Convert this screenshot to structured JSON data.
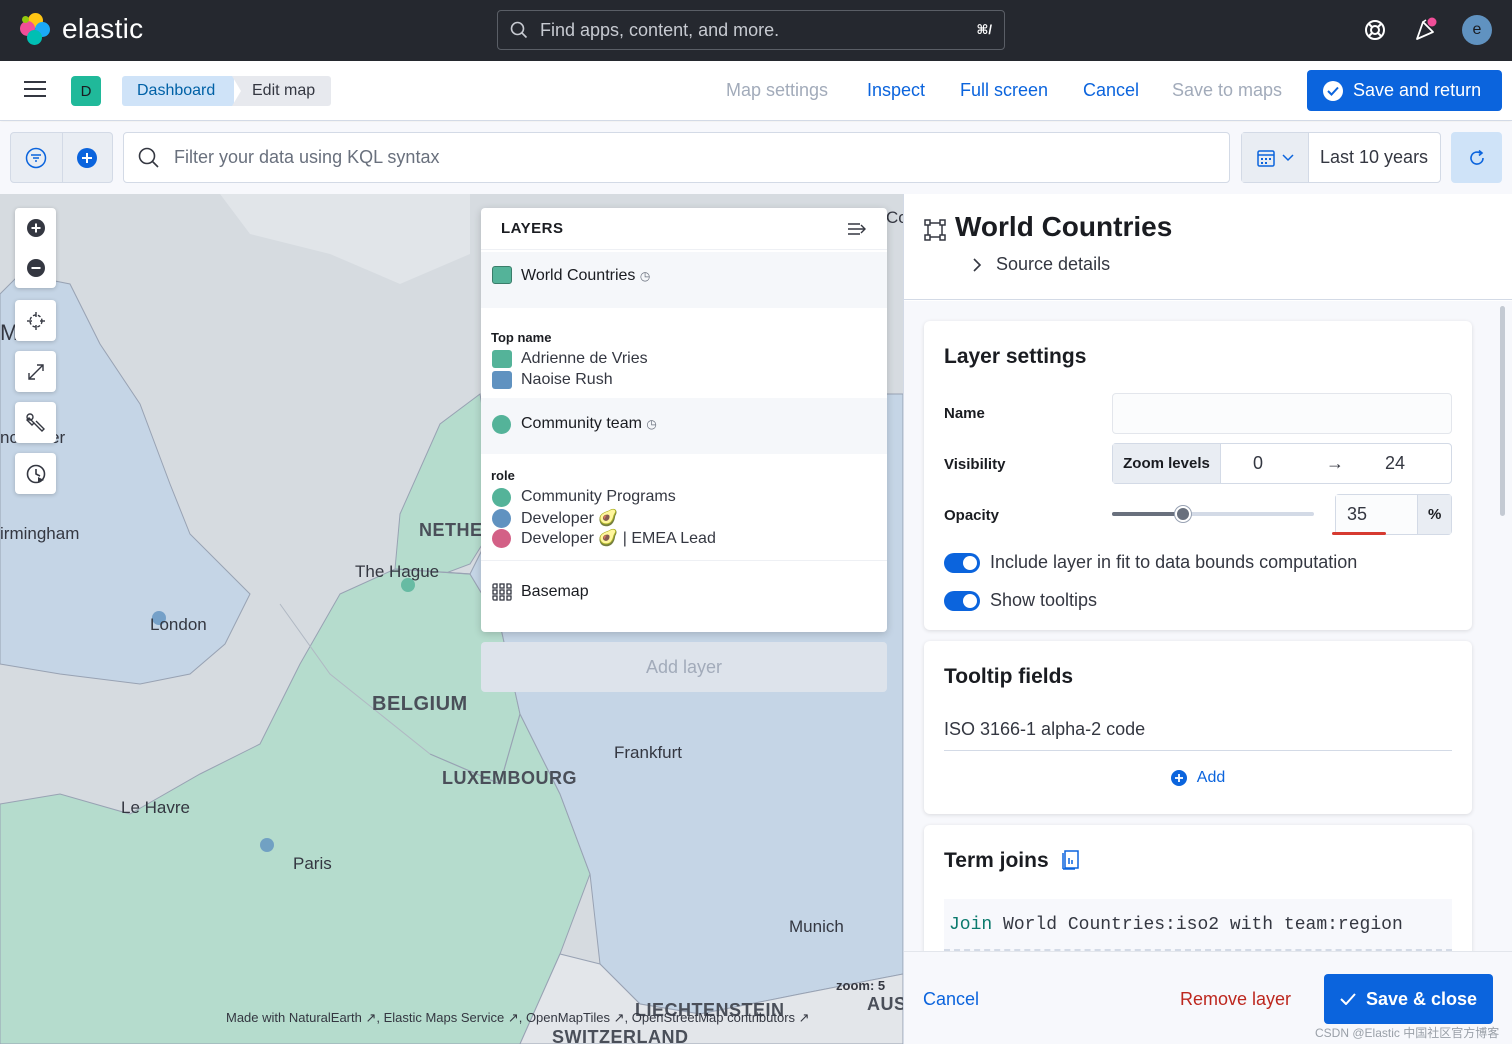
{
  "header": {
    "logo_text": "elastic",
    "search_placeholder": "Find apps, content, and more.",
    "search_shortcut": "⌘/",
    "avatar_initial": "e"
  },
  "actionbar": {
    "space_initial": "D",
    "breadcrumbs": [
      "Dashboard",
      "Edit map"
    ],
    "links": {
      "map_settings": "Map settings",
      "inspect": "Inspect",
      "full_screen": "Full screen",
      "cancel": "Cancel",
      "save_to_maps": "Save to maps"
    },
    "save_return": "Save and return"
  },
  "querybar": {
    "kql_placeholder": "Filter your data using KQL syntax",
    "date_range": "Last 10 years"
  },
  "map": {
    "labels": {
      "manchester": "nchester",
      "birmingham": "irmingham",
      "london": "London",
      "the_hague": "The Hague",
      "netherlands": "NETHER",
      "belgium": "BELGIUM",
      "luxembourg": "LUXEMBOURG",
      "frankfurt": "Frankfurt",
      "le_havre": "Le Havre",
      "paris": "Paris",
      "munich": "Munich",
      "liechtenstein": "LIECHTENSTEIN",
      "switzerland": "SWITZERLAND",
      "austria": "AUS",
      "edge_m": "M",
      "edge_co": "Co"
    },
    "zoom_text": "zoom: 5",
    "attribution": "Made with NaturalEarth ↗, Elastic Maps Service ↗, OpenMapTiles ↗, OpenStreetMap contributors ↗",
    "colors": {
      "water": "#d6dbe0",
      "land_blue": "#c5d5e6",
      "land_green": "#b5dccd",
      "land_grey": "#e3e6ea"
    }
  },
  "layers": {
    "title": "LAYERS",
    "world_countries": "World Countries",
    "top_name_header": "Top name",
    "top_names": [
      "Adrienne de Vries",
      "Naoise Rush"
    ],
    "community_team": "Community team",
    "role_header": "role",
    "roles": [
      "Community Programs",
      "Developer 🥑",
      "Developer 🥑 | EMEA Lead"
    ],
    "basemap": "Basemap",
    "add_layer": "Add layer",
    "swatch_colors": {
      "green": "#54b399",
      "blue": "#6092c0",
      "pink": "#d36086"
    }
  },
  "flyout": {
    "title": "World Countries",
    "source_details": "Source details",
    "layer_settings": {
      "title": "Layer settings",
      "name_label": "Name",
      "name_value": "",
      "visibility_label": "Visibility",
      "zoom_levels_label": "Zoom levels",
      "zoom_min": "0",
      "zoom_max": "24",
      "opacity_label": "Opacity",
      "opacity_value": "35",
      "opacity_unit": "%",
      "opacity_fraction": 0.35,
      "fit_bounds": "Include layer in fit to data bounds computation",
      "show_tooltips": "Show tooltips"
    },
    "tooltip_fields": {
      "title": "Tooltip fields",
      "field": "ISO 3166-1 alpha-2 code",
      "add": "Add"
    },
    "term_joins": {
      "title": "Term joins",
      "join_kw": "Join",
      "join_left": "World Countries:iso2",
      "with_kw": "with",
      "join_right": "team:region"
    },
    "footer": {
      "cancel": "Cancel",
      "remove_layer": "Remove layer",
      "save_close": "Save & close"
    }
  },
  "watermark": "CSDN @Elastic 中国社区官方博客"
}
